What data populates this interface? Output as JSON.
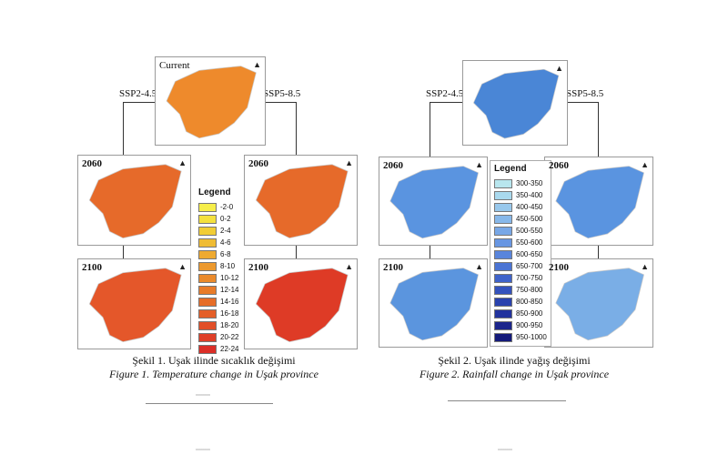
{
  "figure_left": {
    "maps": [
      {
        "label": "Current",
        "scenario": "current"
      },
      {
        "label": "2060",
        "scenario": "SSP2-4.5"
      },
      {
        "label": "2060",
        "scenario": "SSP5-8.5"
      },
      {
        "label": "2100",
        "scenario": "SSP2-4.5"
      },
      {
        "label": "2100",
        "scenario": "SSP5-8.5"
      }
    ],
    "scenario_left": "SSP2-4.5",
    "scenario_right": "SSP5-8.5",
    "legend_title": "Legend",
    "legend": [
      {
        "range": "-2-0",
        "color": "#f6ee4a"
      },
      {
        "range": "0-2",
        "color": "#f4e13e"
      },
      {
        "range": "2-4",
        "color": "#f1cd36"
      },
      {
        "range": "4-6",
        "color": "#efbc34"
      },
      {
        "range": "6-8",
        "color": "#eeaa31"
      },
      {
        "range": "8-10",
        "color": "#ec992e"
      },
      {
        "range": "10-12",
        "color": "#ea8a2b"
      },
      {
        "range": "12-14",
        "color": "#e87b29"
      },
      {
        "range": "14-16",
        "color": "#e66d28"
      },
      {
        "range": "16-18",
        "color": "#e45e28"
      },
      {
        "range": "18-20",
        "color": "#e24f28"
      },
      {
        "range": "20-22",
        "color": "#df3f28"
      },
      {
        "range": "22-24",
        "color": "#db2e27"
      }
    ],
    "caption_tr": "Şekil 1. Uşak ilinde sıcaklık değişimi",
    "caption_en": "Figure 1. Temperature change in Uşak province"
  },
  "figure_right": {
    "maps": [
      {
        "label": "",
        "scenario": "current"
      },
      {
        "label": "2060",
        "scenario": "SSP2-4.5"
      },
      {
        "label": "2060",
        "scenario": "SSP5-8.5"
      },
      {
        "label": "2100",
        "scenario": "SSP2-4.5"
      },
      {
        "label": "2100",
        "scenario": "SSP5-8.5"
      }
    ],
    "scenario_left": "SSP2-4.5",
    "scenario_right": "SSP5-8.5",
    "legend_title": "Legend",
    "legend": [
      {
        "range": "300-350",
        "color": "#b8e6ee"
      },
      {
        "range": "350-400",
        "color": "#a9d9ee"
      },
      {
        "range": "400-450",
        "color": "#98c8ec"
      },
      {
        "range": "450-500",
        "color": "#87b8ea"
      },
      {
        "range": "500-550",
        "color": "#78a7e6"
      },
      {
        "range": "550-600",
        "color": "#6896e2"
      },
      {
        "range": "600-650",
        "color": "#5985dc"
      },
      {
        "range": "650-700",
        "color": "#4b74d4"
      },
      {
        "range": "700-750",
        "color": "#3f63ca"
      },
      {
        "range": "750-800",
        "color": "#3452bd"
      },
      {
        "range": "800-850",
        "color": "#2a42ae"
      },
      {
        "range": "850-900",
        "color": "#22339e"
      },
      {
        "range": "900-950",
        "color": "#1b258c"
      },
      {
        "range": "950-1000",
        "color": "#141a7a"
      }
    ],
    "caption_tr": "Şekil 2. Uşak ilinde yağış değişimi",
    "caption_en": "Figure 2. Rainfall change in Uşak province"
  },
  "colors": {
    "temp_current": "#ee8a2c",
    "temp_2060": "#e66a2a",
    "temp_2100_ssp2": "#e4572a",
    "temp_2100_ssp5": "#de3b26",
    "rain_current": "#4a86d6",
    "rain_2060": "#5a94e0",
    "rain_2100_ssp2": "#5b95de",
    "rain_2100_ssp5": "#7aaee6"
  }
}
